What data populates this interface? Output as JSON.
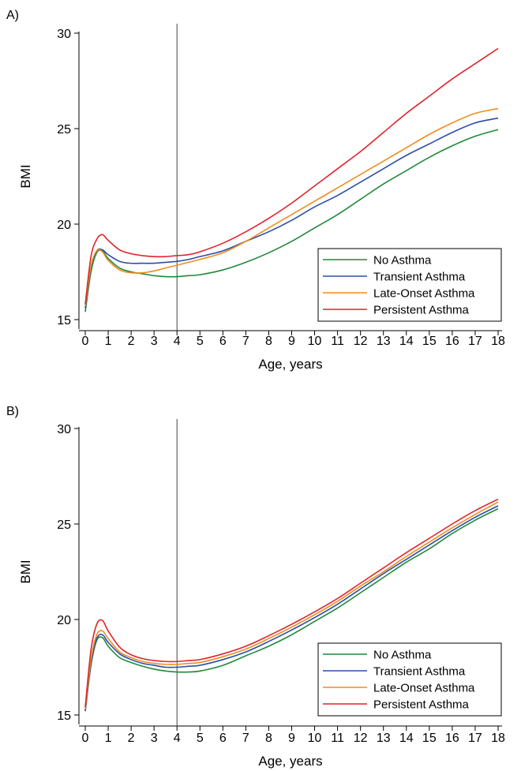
{
  "colors": {
    "no_asthma": "#1f8a3a",
    "transient": "#2b4ea8",
    "late_onset": "#f28c1c",
    "persistent": "#e0242a",
    "axis": "#000000",
    "refline": "#444444"
  },
  "chart_data": [
    {
      "panel": "A)",
      "type": "line",
      "xlabel": "Age, years",
      "ylabel": "BMI",
      "xlim": [
        0,
        18
      ],
      "ylim": [
        15,
        30
      ],
      "xticks": [
        0,
        1,
        2,
        3,
        4,
        5,
        6,
        7,
        8,
        9,
        10,
        11,
        12,
        13,
        14,
        15,
        16,
        17,
        18
      ],
      "yticks": [
        15,
        20,
        25,
        30
      ],
      "vline_x": 4,
      "grid": false,
      "legend_position": "bottom-right",
      "x": [
        0,
        0.25,
        0.5,
        0.75,
        1,
        1.5,
        2,
        2.5,
        3,
        3.5,
        4,
        4.5,
        5,
        6,
        7,
        8,
        9,
        10,
        11,
        12,
        13,
        14,
        15,
        16,
        17,
        18
      ],
      "series": [
        {
          "name": "No Asthma",
          "color_key": "no_asthma",
          "values": [
            15.4,
            17.5,
            18.5,
            18.6,
            18.2,
            17.7,
            17.5,
            17.4,
            17.3,
            17.25,
            17.25,
            17.3,
            17.35,
            17.6,
            18.0,
            18.5,
            19.1,
            19.8,
            20.5,
            21.3,
            22.1,
            22.8,
            23.5,
            24.1,
            24.6,
            24.95
          ]
        },
        {
          "name": "Transient Asthma",
          "color_key": "transient",
          "values": [
            15.6,
            17.7,
            18.6,
            18.65,
            18.4,
            18.05,
            17.95,
            17.95,
            17.95,
            18.0,
            18.05,
            18.15,
            18.3,
            18.6,
            19.1,
            19.6,
            20.2,
            20.9,
            21.5,
            22.2,
            22.9,
            23.6,
            24.2,
            24.8,
            25.3,
            25.55
          ]
        },
        {
          "name": "Late-Onset Asthma",
          "color_key": "late_onset",
          "values": [
            15.7,
            17.8,
            18.6,
            18.55,
            18.1,
            17.6,
            17.45,
            17.45,
            17.55,
            17.7,
            17.85,
            18.0,
            18.15,
            18.5,
            19.1,
            19.8,
            20.5,
            21.2,
            21.9,
            22.6,
            23.3,
            24.0,
            24.7,
            25.3,
            25.8,
            26.05
          ]
        },
        {
          "name": "Persistent Asthma",
          "color_key": "persistent",
          "values": [
            15.8,
            18.3,
            19.2,
            19.45,
            19.15,
            18.65,
            18.45,
            18.35,
            18.3,
            18.3,
            18.35,
            18.4,
            18.55,
            19.0,
            19.6,
            20.3,
            21.1,
            22.0,
            22.9,
            23.8,
            24.8,
            25.8,
            26.7,
            27.6,
            28.4,
            29.2
          ]
        }
      ]
    },
    {
      "panel": "B)",
      "type": "line",
      "xlabel": "Age, years",
      "ylabel": "BMI",
      "xlim": [
        0,
        18
      ],
      "ylim": [
        15,
        30
      ],
      "xticks": [
        0,
        1,
        2,
        3,
        4,
        5,
        6,
        7,
        8,
        9,
        10,
        11,
        12,
        13,
        14,
        15,
        16,
        17,
        18
      ],
      "yticks": [
        15,
        20,
        25,
        30
      ],
      "vline_x": 4,
      "grid": false,
      "legend_position": "bottom-right",
      "x": [
        0,
        0.25,
        0.5,
        0.75,
        1,
        1.5,
        2,
        2.5,
        3,
        3.5,
        4,
        4.5,
        5,
        6,
        7,
        8,
        9,
        10,
        11,
        12,
        13,
        14,
        15,
        16,
        17,
        18
      ],
      "series": [
        {
          "name": "No Asthma",
          "color_key": "no_asthma",
          "values": [
            15.2,
            17.6,
            18.9,
            19.05,
            18.6,
            18.0,
            17.75,
            17.55,
            17.4,
            17.3,
            17.25,
            17.25,
            17.3,
            17.6,
            18.1,
            18.6,
            19.2,
            19.9,
            20.6,
            21.4,
            22.2,
            23.0,
            23.7,
            24.5,
            25.2,
            25.8
          ]
        },
        {
          "name": "Transient Asthma",
          "color_key": "transient",
          "values": [
            15.2,
            17.7,
            19.0,
            19.2,
            18.8,
            18.2,
            17.9,
            17.7,
            17.6,
            17.5,
            17.5,
            17.55,
            17.6,
            17.9,
            18.3,
            18.85,
            19.45,
            20.1,
            20.8,
            21.6,
            22.4,
            23.15,
            23.9,
            24.65,
            25.35,
            25.95
          ]
        },
        {
          "name": "Late-Onset Asthma",
          "color_key": "late_onset",
          "values": [
            15.3,
            17.9,
            19.2,
            19.4,
            19.0,
            18.3,
            18.0,
            17.8,
            17.7,
            17.65,
            17.65,
            17.7,
            17.75,
            18.05,
            18.45,
            19.0,
            19.6,
            20.25,
            20.95,
            21.75,
            22.5,
            23.3,
            24.05,
            24.8,
            25.5,
            26.15
          ]
        },
        {
          "name": "Persistent Asthma",
          "color_key": "persistent",
          "values": [
            15.4,
            18.4,
            19.75,
            19.95,
            19.4,
            18.55,
            18.15,
            17.95,
            17.85,
            17.8,
            17.8,
            17.85,
            17.9,
            18.2,
            18.6,
            19.15,
            19.75,
            20.4,
            21.1,
            21.9,
            22.7,
            23.5,
            24.25,
            25.0,
            25.7,
            26.3
          ]
        }
      ]
    }
  ]
}
